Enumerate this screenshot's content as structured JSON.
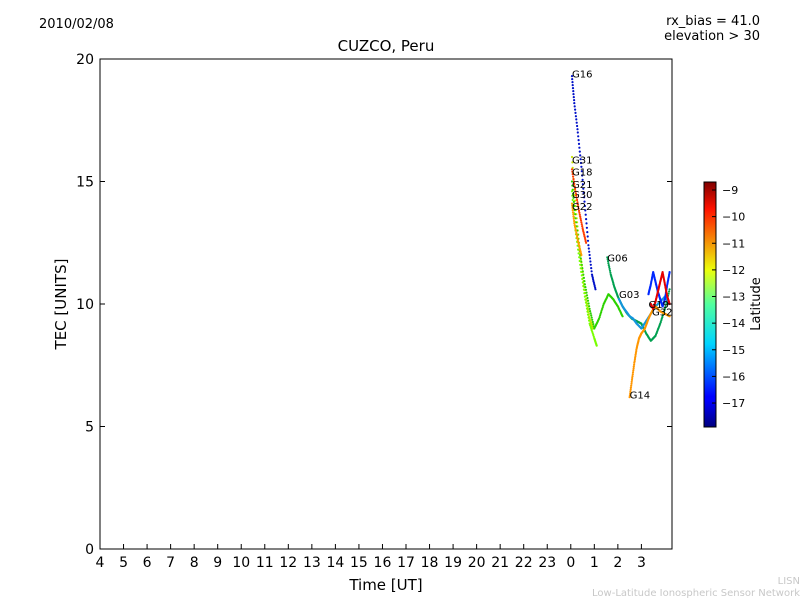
{
  "header": {
    "date": "2010/02/08",
    "rx_bias": "rx_bias = 41.0",
    "elevation": "elevation > 30"
  },
  "footer": {
    "org_short": "LISN",
    "org_long": "Low-Latitude Ionospheric Sensor Network"
  },
  "chart_data": {
    "type": "scatter",
    "title": "CUZCO, Peru",
    "xlabel": "Time [UT]",
    "ylabel": "TEC [UNITS]",
    "x_tick_labels": [
      "4",
      "5",
      "6",
      "7",
      "8",
      "9",
      "10",
      "11",
      "12",
      "13",
      "14",
      "15",
      "16",
      "17",
      "18",
      "19",
      "20",
      "21",
      "22",
      "23",
      "0",
      "1",
      "2",
      "3"
    ],
    "xlim_hours_from_start": [
      0,
      24.3
    ],
    "ylim": [
      0,
      20
    ],
    "y_ticks": [
      0,
      5,
      10,
      15,
      20
    ],
    "colorbar": {
      "label": "Latitude",
      "range": [
        -17.9,
        -8.7
      ],
      "ticks": [
        -9,
        -10,
        -11,
        -12,
        -13,
        -14,
        -15,
        -16,
        -17
      ],
      "colormap": "jet"
    },
    "series": [
      {
        "name": "G16",
        "color": "#0010c8",
        "points": [
          [
            20.05,
            19.3
          ],
          [
            20.15,
            18.2
          ],
          [
            20.3,
            17.0
          ],
          [
            20.45,
            15.6
          ],
          [
            20.6,
            14.0
          ],
          [
            20.75,
            12.4
          ],
          [
            20.9,
            11.2
          ],
          [
            21.05,
            10.6
          ]
        ]
      },
      {
        "name": "G31",
        "color": "#c8e600",
        "points": [
          [
            20.05,
            16.0
          ],
          [
            20.2,
            14.0
          ],
          [
            20.35,
            12.5
          ],
          [
            20.5,
            11.3
          ],
          [
            20.65,
            10.2
          ],
          [
            20.8,
            9.4
          ],
          [
            20.95,
            9.0
          ]
        ]
      },
      {
        "name": "G18",
        "color": "#ff3c00",
        "points": [
          [
            20.05,
            15.5
          ],
          [
            20.2,
            14.6
          ],
          [
            20.35,
            13.8
          ],
          [
            20.5,
            13.1
          ],
          [
            20.65,
            12.5
          ]
        ]
      },
      {
        "name": "G21",
        "color": "#2cd200",
        "points": [
          [
            20.05,
            15.0
          ],
          [
            20.2,
            13.5
          ],
          [
            20.4,
            12.0
          ],
          [
            20.6,
            10.8
          ],
          [
            20.8,
            9.8
          ],
          [
            21.0,
            9.0
          ],
          [
            21.2,
            9.4
          ],
          [
            21.4,
            10.0
          ],
          [
            21.6,
            10.4
          ],
          [
            21.8,
            10.2
          ],
          [
            22.0,
            9.9
          ],
          [
            22.2,
            9.5
          ]
        ]
      },
      {
        "name": "G30",
        "color": "#78ff00",
        "points": [
          [
            20.05,
            14.6
          ],
          [
            20.2,
            13.0
          ],
          [
            20.4,
            11.6
          ],
          [
            20.6,
            10.3
          ],
          [
            20.8,
            9.2
          ],
          [
            21.0,
            8.6
          ],
          [
            21.1,
            8.3
          ]
        ]
      },
      {
        "name": "G22",
        "color": "#ffa000",
        "points": [
          [
            20.05,
            14.1
          ],
          [
            20.15,
            13.3
          ],
          [
            20.3,
            12.6
          ],
          [
            20.45,
            12.0
          ]
        ]
      },
      {
        "name": "G06",
        "color": "#00a050",
        "points": [
          [
            21.55,
            11.9
          ],
          [
            21.7,
            11.2
          ],
          [
            21.85,
            10.7
          ],
          [
            22.0,
            10.3
          ],
          [
            22.2,
            9.9
          ],
          [
            22.4,
            9.6
          ],
          [
            22.6,
            9.4
          ],
          [
            22.8,
            9.3
          ],
          [
            23.0,
            9.2
          ],
          [
            23.2,
            8.8
          ],
          [
            23.4,
            8.5
          ],
          [
            23.6,
            8.7
          ],
          [
            23.8,
            9.2
          ],
          [
            24.0,
            9.8
          ],
          [
            24.2,
            10.6
          ]
        ]
      },
      {
        "name": "G03",
        "color": "#1496dc",
        "points": [
          [
            22.05,
            10.2
          ],
          [
            22.2,
            9.9
          ],
          [
            22.35,
            9.7
          ],
          [
            22.5,
            9.5
          ],
          [
            22.65,
            9.4
          ],
          [
            22.8,
            9.2
          ],
          [
            23.0,
            9.0
          ],
          [
            23.2,
            9.3
          ],
          [
            23.4,
            9.6
          ],
          [
            23.6,
            9.9
          ],
          [
            23.8,
            10.1
          ],
          [
            24.0,
            10.3
          ],
          [
            24.2,
            10.0
          ]
        ]
      },
      {
        "name": "G14",
        "color": "#ff9600",
        "points": [
          [
            22.5,
            6.2
          ],
          [
            22.6,
            6.9
          ],
          [
            22.7,
            7.6
          ],
          [
            22.8,
            8.2
          ],
          [
            22.9,
            8.6
          ],
          [
            23.0,
            8.8
          ],
          [
            23.15,
            9.0
          ],
          [
            23.3,
            9.4
          ],
          [
            23.45,
            9.7
          ],
          [
            23.6,
            9.9
          ],
          [
            23.8,
            9.7
          ],
          [
            24.0,
            9.6
          ],
          [
            24.2,
            9.5
          ]
        ]
      },
      {
        "name": "G19",
        "color": "#0028ff",
        "points": [
          [
            23.3,
            10.4
          ],
          [
            23.4,
            10.8
          ],
          [
            23.5,
            11.3
          ],
          [
            23.6,
            10.9
          ],
          [
            23.7,
            10.5
          ],
          [
            23.8,
            10.2
          ],
          [
            23.9,
            9.9
          ],
          [
            24.0,
            10.2
          ],
          [
            24.1,
            10.8
          ],
          [
            24.2,
            11.3
          ]
        ]
      },
      {
        "name": "G32",
        "color": "#e60000",
        "points": [
          [
            23.4,
            10.0
          ],
          [
            23.5,
            9.8
          ],
          [
            23.6,
            10.1
          ],
          [
            23.7,
            10.5
          ],
          [
            23.8,
            10.9
          ],
          [
            23.9,
            11.3
          ],
          [
            24.0,
            10.8
          ],
          [
            24.1,
            10.3
          ],
          [
            24.2,
            10.0
          ]
        ]
      }
    ],
    "labels": [
      {
        "text": "G16",
        "x": 20.05,
        "y": 19.4
      },
      {
        "text": "G31",
        "x": 20.05,
        "y": 15.9
      },
      {
        "text": "G18",
        "x": 20.05,
        "y": 15.4
      },
      {
        "text": "G21",
        "x": 20.05,
        "y": 14.9
      },
      {
        "text": "G30",
        "x": 20.05,
        "y": 14.5
      },
      {
        "text": "G22",
        "x": 20.05,
        "y": 14.0
      },
      {
        "text": "G06",
        "x": 21.55,
        "y": 11.9
      },
      {
        "text": "G03",
        "x": 22.05,
        "y": 10.4
      },
      {
        "text": "G14",
        "x": 22.5,
        "y": 6.3
      },
      {
        "text": "G19",
        "x": 23.3,
        "y": 10.0
      },
      {
        "text": "G32",
        "x": 23.45,
        "y": 9.7
      }
    ]
  }
}
